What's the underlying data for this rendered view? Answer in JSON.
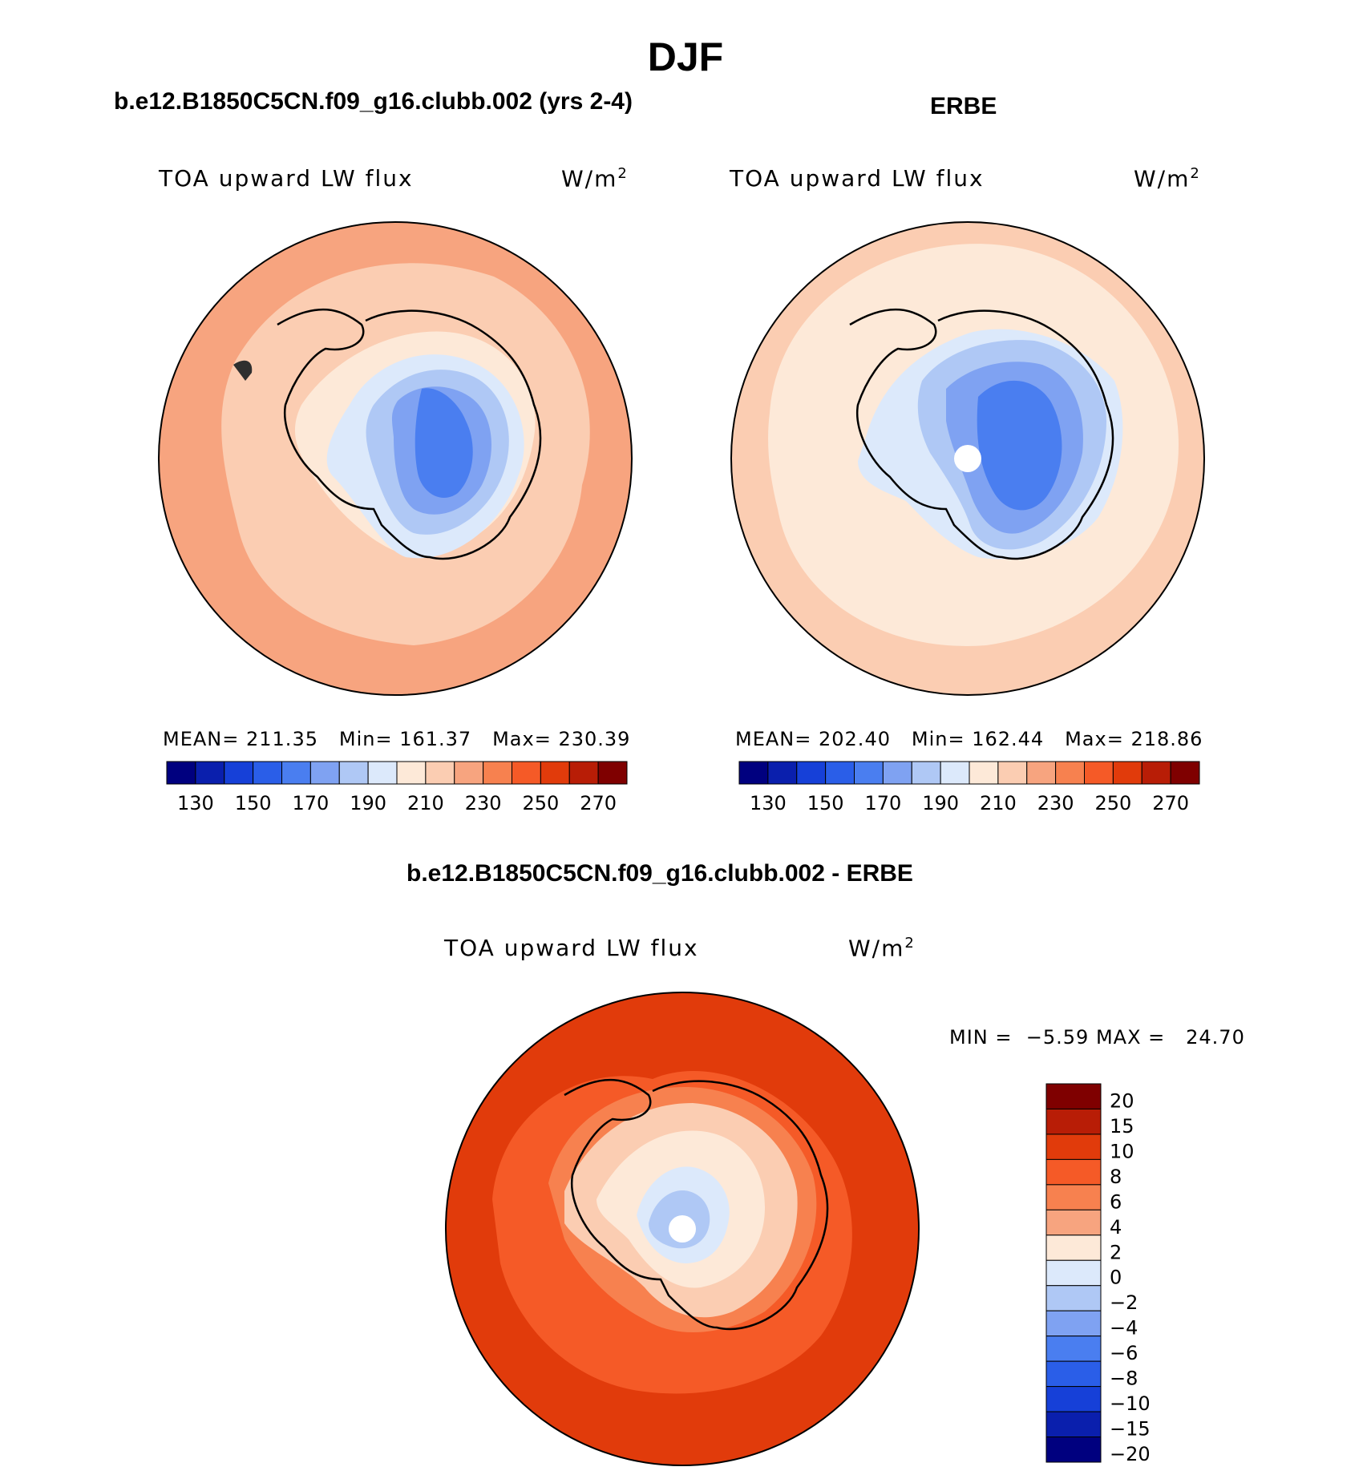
{
  "title": "DJF",
  "panels": [
    {
      "id": "model",
      "title": "b.e12.B1850C5CN.f09_g16.clubb.002 (yrs 2-4)",
      "variable": "TOA upward LW flux",
      "units": "W/m",
      "units_exp": "2",
      "stats": {
        "mean_label": "MEAN=",
        "mean": "211.35",
        "min_label": "Min=",
        "min": "161.37",
        "max_label": "Max=",
        "max": "230.39"
      }
    },
    {
      "id": "obs",
      "title": "ERBE",
      "variable": "TOA upward LW flux",
      "units": "W/m",
      "units_exp": "2",
      "stats": {
        "mean_label": "MEAN=",
        "mean": "202.40",
        "min_label": "Min=",
        "min": "162.44",
        "max_label": "Max=",
        "max": "218.86"
      }
    },
    {
      "id": "diff",
      "title": "b.e12.B1850C5CN.f09_g16.clubb.002 - ERBE",
      "variable": "TOA upward LW flux",
      "units": "W/m",
      "units_exp": "2",
      "stats": {
        "min_label": "MIN =",
        "min": "−5.59",
        "max_label": "MAX =",
        "max": "24.70"
      }
    }
  ],
  "colorbar_abs": {
    "colors": [
      "#00007f",
      "#0a1fad",
      "#1640d8",
      "#2a5ee8",
      "#4a7ef0",
      "#7fa2f2",
      "#afc8f5",
      "#dce9fb",
      "#fde9d8",
      "#fbcdb2",
      "#f7a47f",
      "#f7814f",
      "#f55a27",
      "#e13b0b",
      "#b81d06",
      "#7f0000"
    ],
    "tick_labels": [
      "130",
      "150",
      "170",
      "190",
      "210",
      "230",
      "250",
      "270"
    ]
  },
  "colorbar_diff": {
    "colors": [
      "#7f0000",
      "#b81d06",
      "#e13b0b",
      "#f55a27",
      "#f7814f",
      "#f7a47f",
      "#fde9d8",
      "#dce9fb",
      "#afc8f5",
      "#7fa2f2",
      "#4a7ef0",
      "#2a5ee8",
      "#1640d8",
      "#0a1fad",
      "#00007f"
    ],
    "tick_labels": [
      "20",
      "15",
      "10",
      "8",
      "6",
      "4",
      "2",
      "0",
      "−2",
      "−4",
      "−6",
      "−8",
      "−10",
      "−15",
      "−20"
    ]
  },
  "chart_data": [
    {
      "type": "heatmap",
      "title": "b.e12.B1850C5CN.f09_g16.clubb.002 (yrs 2-4)",
      "projection": "south polar stereographic",
      "variable": "TOA upward LW flux",
      "units": "W/m2",
      "mean": 211.35,
      "min": 161.37,
      "max": 230.39,
      "contour_levels": [
        130,
        140,
        150,
        160,
        170,
        180,
        190,
        200,
        210,
        220,
        230,
        240,
        250,
        260,
        270
      ]
    },
    {
      "type": "heatmap",
      "title": "ERBE",
      "projection": "south polar stereographic",
      "variable": "TOA upward LW flux",
      "units": "W/m2",
      "mean": 202.4,
      "min": 162.44,
      "max": 218.86,
      "contour_levels": [
        130,
        140,
        150,
        160,
        170,
        180,
        190,
        200,
        210,
        220,
        230,
        240,
        250,
        260,
        270
      ]
    },
    {
      "type": "heatmap",
      "title": "b.e12.B1850C5CN.f09_g16.clubb.002 - ERBE",
      "projection": "south polar stereographic",
      "variable": "TOA upward LW flux",
      "units": "W/m2",
      "min": -5.59,
      "max": 24.7,
      "contour_levels": [
        -20,
        -15,
        -10,
        -8,
        -6,
        -4,
        -2,
        0,
        2,
        4,
        6,
        8,
        10,
        15,
        20
      ]
    }
  ]
}
